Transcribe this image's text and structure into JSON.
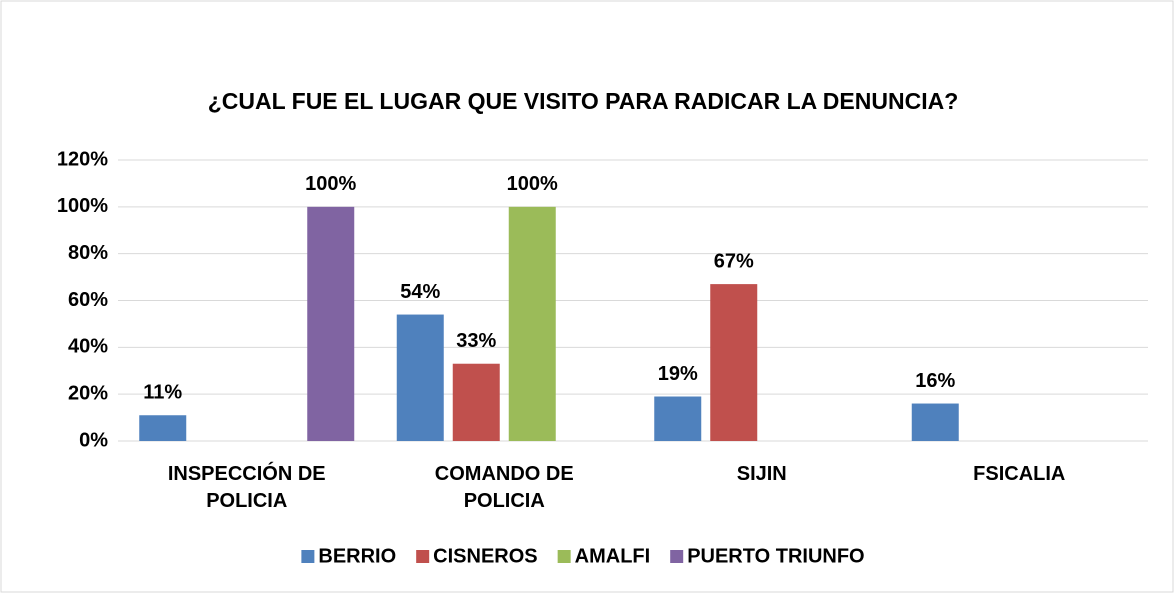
{
  "chart_data": {
    "type": "bar",
    "title": "¿CUAL FUE EL LUGAR QUE VISITO PARA RADICAR LA DENUNCIA?",
    "categories": [
      "INSPECCIÓN DE POLICIA",
      "COMANDO DE POLICIA",
      "SIJIN",
      "FSICALIA"
    ],
    "series": [
      {
        "name": "BERRIO",
        "color": "#4f81bd",
        "values": [
          11,
          54,
          19,
          16
        ],
        "value_labels": [
          "11%",
          "54%",
          "19%",
          "16%"
        ]
      },
      {
        "name": "CISNEROS",
        "color": "#c0504d",
        "values": [
          null,
          33,
          67,
          null
        ],
        "value_labels": [
          null,
          "33%",
          "67%",
          null
        ]
      },
      {
        "name": "AMALFI",
        "color": "#9bbb59",
        "values": [
          null,
          100,
          null,
          null
        ],
        "value_labels": [
          null,
          "100%",
          null,
          null
        ]
      },
      {
        "name": "PUERTO TRIUNFO",
        "color": "#8064a2",
        "values": [
          100,
          null,
          null,
          null
        ],
        "value_labels": [
          "100%",
          null,
          null,
          null
        ]
      }
    ],
    "ylim": [
      0,
      120
    ],
    "yticks": [
      {
        "value": 0,
        "label": "0%"
      },
      {
        "value": 20,
        "label": "20%"
      },
      {
        "value": 40,
        "label": "40%"
      },
      {
        "value": 60,
        "label": "60%"
      },
      {
        "value": 80,
        "label": "80%"
      },
      {
        "value": 100,
        "label": "100%"
      },
      {
        "value": 120,
        "label": "120%"
      }
    ],
    "grid": true,
    "legend": "bottom"
  }
}
